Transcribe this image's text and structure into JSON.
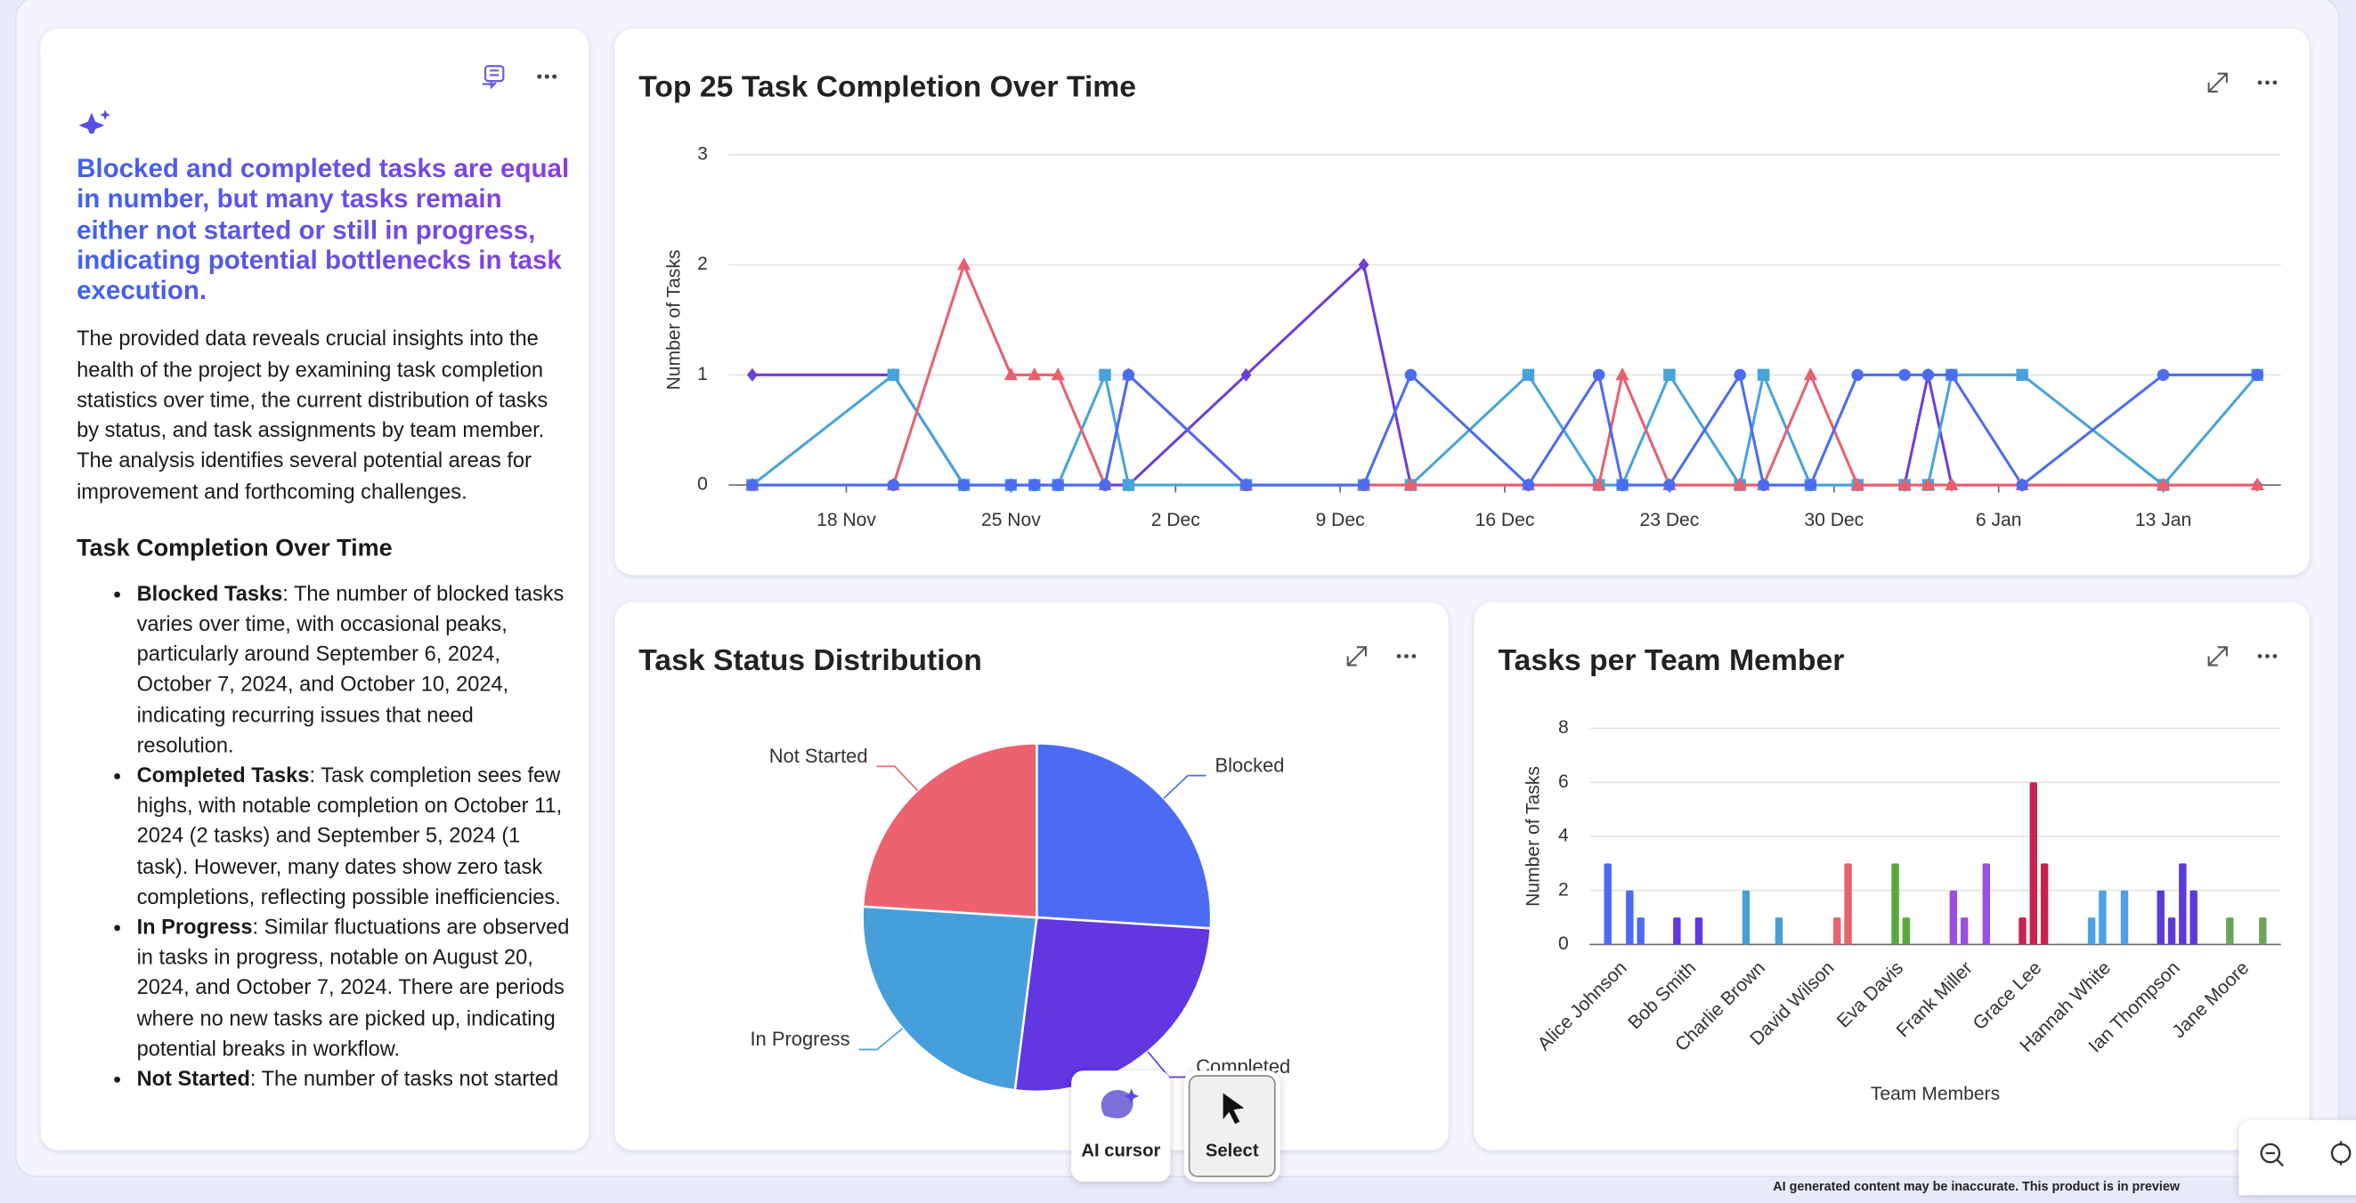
{
  "panel": {
    "headline": "Blocked and completed tasks are equal in number, but many tasks remain either not started or still in progress, indicating potential bottlenecks in task execution.",
    "intro": "The provided data reveals crucial insights into the health of the project by examining task completion statistics over time, the current distribution of tasks by status, and task assignments by team member. The analysis identifies several potential areas for improvement and forthcoming challenges.",
    "section_title": "Task Completion Over Time",
    "bullets": [
      {
        "term": "Blocked Tasks",
        "text": ": The number of blocked tasks varies over time, with occasional peaks, particularly around September 6, 2024, October 7, 2024, and October 10, 2024, indicating recurring issues that need resolution."
      },
      {
        "term": "Completed Tasks",
        "text": ": Task completion sees few highs, with notable completion on October 11, 2024 (2 tasks) and September 5, 2024 (1 task). However, many dates show zero task completions, reflecting possible inefficiencies."
      },
      {
        "term": "In Progress",
        "text": ": Similar fluctuations are observed in tasks in progress, notable on August 20, 2024, and October 7, 2024. There are periods where no new tasks are picked up, indicating potential breaks in workflow."
      },
      {
        "term": "Not Started",
        "text": ": The number of tasks not started"
      }
    ]
  },
  "chart_data": [
    {
      "type": "line",
      "title": "Top 25 Task Completion Over Time",
      "y_label": "Number of Tasks",
      "x": [
        "14 Nov",
        "20 Nov",
        "23 Nov",
        "25 Nov",
        "26 Nov",
        "27 Nov",
        "29 Nov",
        "30 Nov",
        "5 Dec",
        "10 Dec",
        "12 Dec",
        "17 Dec",
        "20 Dec",
        "21 Dec",
        "23 Dec",
        "26 Dec",
        "27 Dec",
        "29 Dec",
        "31 Dec",
        "2 Jan",
        "3 Jan",
        "4 Jan",
        "7 Jan",
        "13 Jan",
        "17 Jan"
      ],
      "xlim": [
        "13 Nov",
        "18 Jan"
      ],
      "xticks": [
        "18 Nov",
        "25 Nov",
        "2 Dec",
        "9 Dec",
        "16 Dec",
        "23 Dec",
        "30 Dec",
        "6 Jan",
        "13 Jan"
      ],
      "ylim": [
        0,
        3
      ],
      "yticks": [
        0,
        1,
        2,
        3
      ],
      "grid": true,
      "series": [
        {
          "color": "#6c3ed8",
          "marker": "diamond",
          "values": [
            1,
            1,
            0,
            0,
            0,
            0,
            0,
            0,
            1,
            2,
            0,
            0,
            0,
            0,
            0,
            0,
            0,
            0,
            0,
            0,
            1,
            0,
            0,
            0,
            0
          ]
        },
        {
          "color": "#48a3da",
          "marker": "square",
          "values": [
            0,
            1,
            0,
            0,
            0,
            0,
            1,
            0,
            0,
            0,
            0,
            1,
            0,
            0,
            1,
            0,
            1,
            0,
            0,
            0,
            0,
            1,
            1,
            0,
            1
          ]
        },
        {
          "color": "#e8606e",
          "marker": "triangle",
          "values": [
            0,
            0,
            2,
            1,
            1,
            1,
            0,
            1,
            0,
            0,
            0,
            0,
            0,
            1,
            0,
            0,
            0,
            1,
            0,
            0,
            0,
            0,
            0,
            0,
            0
          ]
        },
        {
          "color": "#4c6cf0",
          "marker": "circle",
          "values": [
            0,
            0,
            0,
            0,
            0,
            0,
            0,
            1,
            0,
            0,
            1,
            0,
            1,
            0,
            0,
            1,
            0,
            0,
            1,
            1,
            1,
            1,
            0,
            1,
            1
          ]
        }
      ]
    },
    {
      "type": "pie",
      "title": "Task Status Distribution",
      "categories": [
        "Blocked",
        "Completed",
        "In Progress",
        "Not Started"
      ],
      "values": [
        13,
        13,
        12,
        12
      ],
      "colors": [
        "#4b6cf2",
        "#6236e0",
        "#469fdb",
        "#ec636f"
      ]
    },
    {
      "type": "bar",
      "title": "Tasks per Team Member",
      "y_label": "Number of Tasks",
      "x_label": "Team Members",
      "categories": [
        "Alice Johnson",
        "Bob Smith",
        "Charlie Brown",
        "David Wilson",
        "Eva Davis",
        "Frank Miller",
        "Grace Lee",
        "Hannah White",
        "Ian Thompson",
        "Jane Moore"
      ],
      "colors": [
        "#4a6cf0",
        "#6236e0",
        "#45a0d9",
        "#e8636e",
        "#5aa83c",
        "#9b4de8",
        "#c8234f",
        "#4fa0e8",
        "#5b3ad9",
        "#6ea35a"
      ],
      "ylim": [
        0,
        8
      ],
      "yticks": [
        0,
        2,
        4,
        6,
        8
      ],
      "grid": true,
      "series": [
        {
          "values": [
            3,
            1,
            2,
            null,
            null,
            2,
            1,
            1,
            2,
            1
          ]
        },
        {
          "values": [
            null,
            null,
            null,
            null,
            3,
            1,
            6,
            2,
            1,
            null
          ]
        },
        {
          "values": [
            2,
            1,
            null,
            1,
            1,
            null,
            3,
            null,
            3,
            null
          ]
        },
        {
          "values": [
            1,
            null,
            1,
            3,
            null,
            3,
            null,
            2,
            2,
            1
          ]
        }
      ]
    }
  ],
  "toolbar": {
    "buttons": [
      "AI cursor",
      "Select"
    ]
  },
  "footer": "AI generated content may be inaccurate. This product is in preview"
}
